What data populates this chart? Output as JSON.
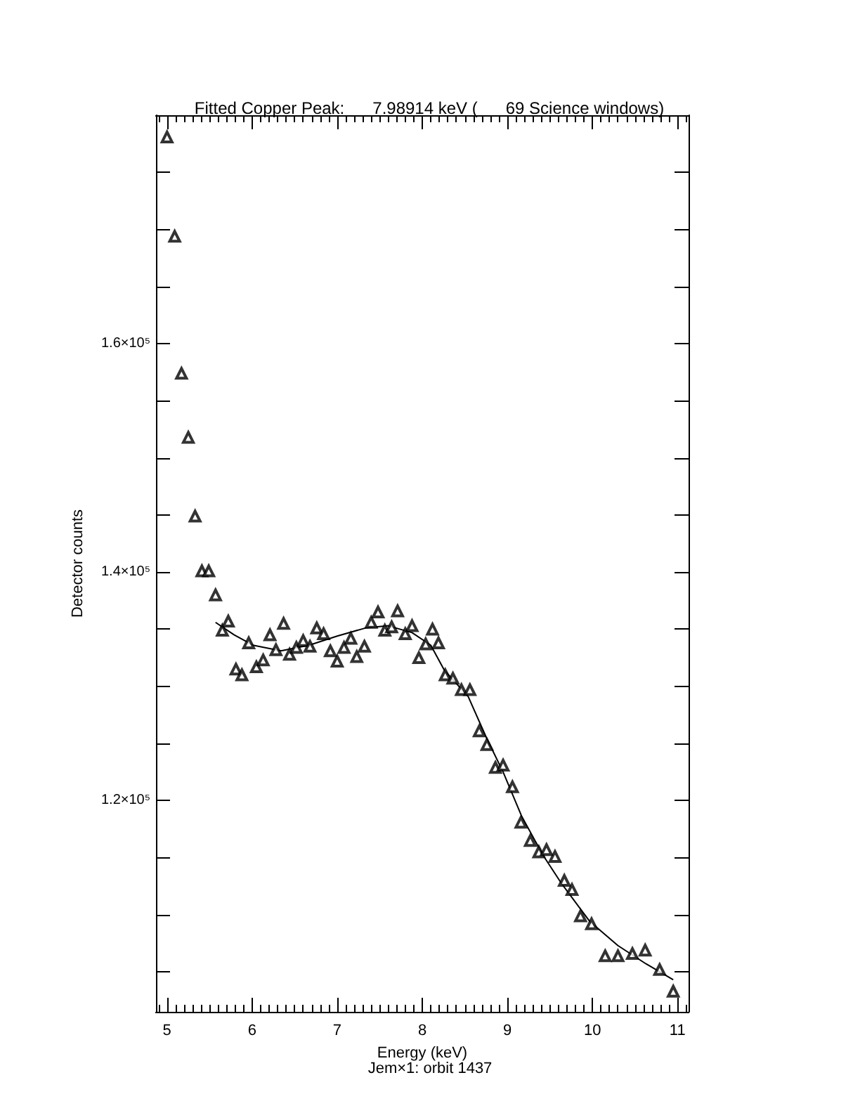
{
  "chart_data": {
    "type": "scatter",
    "title": "Fitted Copper Peak:      7.98914 keV (      69 Science windows)",
    "xlabel": "Energy (keV)",
    "ylabel": "Detector counts",
    "annotations": [
      "Jem×1: orbit 1437"
    ],
    "marker": "triangle",
    "grid": false,
    "xlim": [
      4.87,
      11.13
    ],
    "ylim": [
      101500,
      180000
    ],
    "xticks": [
      {
        "value": 4.9,
        "label": null
      },
      5,
      {
        "value": 5.1,
        "label": null
      },
      {
        "value": 5.2,
        "label": null
      },
      {
        "value": 5.3,
        "label": null
      },
      {
        "value": 5.4,
        "label": null
      },
      {
        "value": 5.5,
        "label": null
      },
      {
        "value": 5.6,
        "label": null
      },
      {
        "value": 5.7,
        "label": null
      },
      {
        "value": 5.8,
        "label": null
      },
      {
        "value": 5.9,
        "label": null
      },
      6,
      {
        "value": 6.1,
        "label": null
      },
      {
        "value": 6.2,
        "label": null
      },
      {
        "value": 6.3,
        "label": null
      },
      {
        "value": 6.4,
        "label": null
      },
      {
        "value": 6.5,
        "label": null
      },
      {
        "value": 6.6,
        "label": null
      },
      {
        "value": 6.7,
        "label": null
      },
      {
        "value": 6.8,
        "label": null
      },
      {
        "value": 6.9,
        "label": null
      },
      7,
      {
        "value": 7.1,
        "label": null
      },
      {
        "value": 7.2,
        "label": null
      },
      {
        "value": 7.3,
        "label": null
      },
      {
        "value": 7.4,
        "label": null
      },
      {
        "value": 7.5,
        "label": null
      },
      {
        "value": 7.6,
        "label": null
      },
      {
        "value": 7.7,
        "label": null
      },
      {
        "value": 7.8,
        "label": null
      },
      {
        "value": 7.9,
        "label": null
      },
      8,
      {
        "value": 8.1,
        "label": null
      },
      {
        "value": 8.2,
        "label": null
      },
      {
        "value": 8.3,
        "label": null
      },
      {
        "value": 8.4,
        "label": null
      },
      {
        "value": 8.5,
        "label": null
      },
      {
        "value": 8.6,
        "label": null
      },
      {
        "value": 8.7,
        "label": null
      },
      {
        "value": 8.8,
        "label": null
      },
      {
        "value": 8.9,
        "label": null
      },
      9,
      {
        "value": 9.1,
        "label": null
      },
      {
        "value": 9.2,
        "label": null
      },
      {
        "value": 9.3,
        "label": null
      },
      {
        "value": 9.4,
        "label": null
      },
      {
        "value": 9.5,
        "label": null
      },
      {
        "value": 9.6,
        "label": null
      },
      {
        "value": 9.7,
        "label": null
      },
      {
        "value": 9.8,
        "label": null
      },
      {
        "value": 9.9,
        "label": null
      },
      10,
      {
        "value": 10.1,
        "label": null
      },
      {
        "value": 10.2,
        "label": null
      },
      {
        "value": 10.3,
        "label": null
      },
      {
        "value": 10.4,
        "label": null
      },
      {
        "value": 10.5,
        "label": null
      },
      {
        "value": 10.6,
        "label": null
      },
      {
        "value": 10.7,
        "label": null
      },
      {
        "value": 10.8,
        "label": null
      },
      {
        "value": 10.9,
        "label": null
      },
      11,
      {
        "value": 11.1,
        "label": null
      }
    ],
    "yticks": [
      {
        "value": 105000,
        "label": null
      },
      {
        "value": 110000,
        "label": null
      },
      {
        "value": 115000,
        "label": null
      },
      {
        "value": 120000,
        "label": "1.2×10⁵"
      },
      {
        "value": 125000,
        "label": null
      },
      {
        "value": 130000,
        "label": null
      },
      {
        "value": 135000,
        "label": null
      },
      {
        "value": 140000,
        "label": "1.4×10⁵"
      },
      {
        "value": 145000,
        "label": null
      },
      {
        "value": 150000,
        "label": null
      },
      {
        "value": 155000,
        "label": null
      },
      {
        "value": 160000,
        "label": "1.6×10⁵"
      },
      {
        "value": 165000,
        "label": null
      },
      {
        "value": 170000,
        "label": null
      },
      {
        "value": 175000,
        "label": null
      },
      {
        "value": 180000,
        "label": null
      }
    ],
    "series": [
      {
        "color": "#000000",
        "x": [
          5.0,
          5.09,
          5.17,
          5.25,
          5.33,
          5.41,
          5.49,
          5.57,
          5.65,
          5.72,
          5.81,
          5.88,
          5.96,
          6.05,
          6.13,
          6.21,
          6.28,
          6.37,
          6.44,
          6.52,
          6.6,
          6.68,
          6.76,
          6.84,
          6.92,
          7.0,
          7.08,
          7.16,
          7.23,
          7.32,
          7.4,
          7.48,
          7.56,
          7.64,
          7.71,
          7.8,
          7.88,
          7.96,
          8.04,
          8.12,
          8.19,
          8.27,
          8.36,
          8.46,
          8.56,
          8.67,
          8.76,
          8.86,
          8.95,
          9.06,
          9.16,
          9.27,
          9.37,
          9.46,
          9.56,
          9.67,
          9.76,
          9.86,
          9.99,
          10.15,
          10.3,
          10.47,
          10.62,
          10.79,
          10.95
        ],
        "values": [
          178100,
          169400,
          157400,
          151800,
          144900,
          140100,
          140100,
          138000,
          134900,
          135700,
          131500,
          131000,
          133800,
          131700,
          132300,
          134500,
          133200,
          135500,
          132800,
          133400,
          134000,
          133500,
          135100,
          134600,
          133100,
          132200,
          133400,
          134200,
          132600,
          133500,
          135600,
          136500,
          134900,
          135200,
          136600,
          134600,
          135300,
          132500,
          133700,
          135000,
          133800,
          131000,
          130700,
          129700,
          129700,
          126100,
          124900,
          122900,
          123100,
          121200,
          118100,
          116500,
          115500,
          115700,
          115100,
          113000,
          112200,
          109900,
          109200,
          106400,
          106400,
          106600,
          106900,
          105200,
          103300
        ]
      },
      {
        "type": "line",
        "color": "#000000",
        "marker": "none",
        "x": [
          5.57,
          5.79,
          6.01,
          6.34,
          6.67,
          7.0,
          7.33,
          7.6,
          7.88,
          8.1,
          8.26,
          8.54,
          8.76,
          8.95,
          9.17,
          9.42,
          9.64,
          9.97,
          10.3,
          10.63,
          10.95
        ],
        "values": [
          135600,
          134500,
          133600,
          133100,
          133600,
          134400,
          135100,
          135300,
          134700,
          133600,
          131400,
          129100,
          125400,
          122500,
          118600,
          115200,
          112700,
          109400,
          107300,
          105700,
          104300
        ]
      }
    ]
  }
}
